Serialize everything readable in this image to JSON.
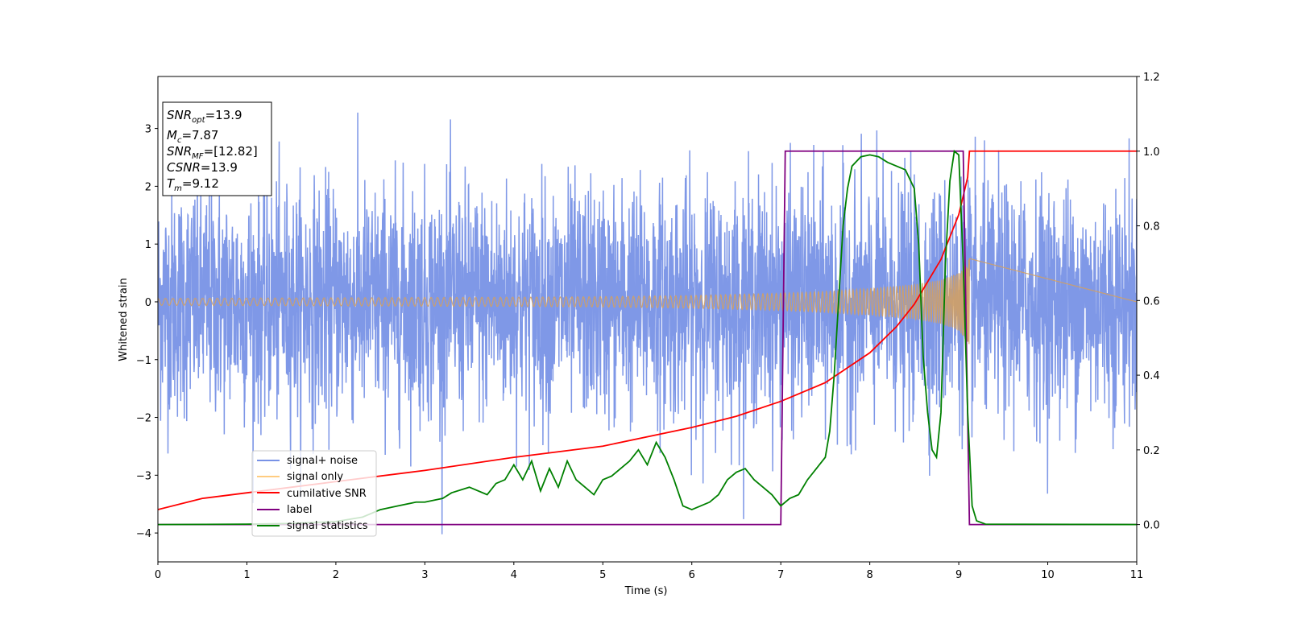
{
  "chart_data": {
    "type": "line",
    "xlabel": "Time (s)",
    "ylabel": "Whitened strain",
    "xlim": [
      0,
      11
    ],
    "ylim_left": [
      -4.5,
      3.9
    ],
    "ylim_right": [
      -0.1,
      1.2
    ],
    "x_ticks": [
      0,
      1,
      2,
      3,
      4,
      5,
      6,
      7,
      8,
      9,
      10,
      11
    ],
    "y_left_ticks": [
      -4,
      -3,
      -2,
      -1,
      0,
      1,
      2,
      3
    ],
    "y_right_ticks": [
      0.0,
      0.2,
      0.4,
      0.6,
      0.8,
      1.0,
      1.2
    ],
    "colors": {
      "noise": "#7892e6",
      "signal": "#d2a064",
      "cumulative": "#ff0000",
      "label": "#800080",
      "statistics": "#008000"
    },
    "stats_box": {
      "snr_opt": "13.9",
      "mc": "7.87",
      "snr_mf": "[12.82]",
      "csnr": "13.9",
      "tm": "9.12"
    },
    "legend": {
      "location": "lower-left",
      "entries": [
        {
          "label": "signal+ noise",
          "color": "#7892e6"
        },
        {
          "label": "signal only",
          "color": "#ffcc80"
        },
        {
          "label": "cumilative SNR",
          "color": "#ff0000"
        },
        {
          "label": "label",
          "color": "#800080"
        },
        {
          "label": "signal statistics",
          "color": "#008000"
        }
      ]
    },
    "series": [
      {
        "name": "signal+ noise",
        "axis": "left",
        "description_only": true,
        "amplitude_range": [
          -4.2,
          3.55
        ],
        "x_range": [
          0,
          11
        ]
      },
      {
        "name": "signal only",
        "axis": "left",
        "envelope": {
          "x": [
            0,
            2,
            4,
            5,
            6,
            7,
            7.5,
            8,
            8.5,
            8.8,
            9.0,
            9.1,
            9.12
          ],
          "amplitude": [
            0.06,
            0.07,
            0.08,
            0.09,
            0.11,
            0.15,
            0.18,
            0.23,
            0.3,
            0.38,
            0.5,
            0.7,
            0.75
          ]
        },
        "end_time": 9.12
      },
      {
        "name": "cumilative SNR",
        "axis": "right",
        "x": [
          0,
          0.5,
          1,
          2,
          3,
          4,
          5,
          6,
          6.5,
          7,
          7.5,
          8,
          8.3,
          8.5,
          8.8,
          9.0,
          9.1,
          9.12,
          11
        ],
        "y": [
          0.04,
          0.07,
          0.085,
          0.115,
          0.145,
          0.18,
          0.21,
          0.26,
          0.29,
          0.33,
          0.38,
          0.46,
          0.53,
          0.59,
          0.71,
          0.83,
          0.93,
          1.0,
          1.0
        ]
      },
      {
        "name": "label",
        "axis": "right",
        "x": [
          0,
          7.0,
          7.05,
          9.05,
          9.12,
          11
        ],
        "y": [
          0.0,
          0.0,
          1.0,
          1.0,
          0.0,
          0.0
        ]
      },
      {
        "name": "signal statistics",
        "axis": "right",
        "x": [
          0,
          1,
          1.5,
          2,
          2.3,
          2.5,
          2.7,
          2.9,
          3.0,
          3.2,
          3.3,
          3.5,
          3.7,
          3.8,
          3.9,
          4.0,
          4.1,
          4.2,
          4.3,
          4.4,
          4.5,
          4.6,
          4.7,
          4.8,
          4.9,
          5.0,
          5.1,
          5.2,
          5.3,
          5.4,
          5.5,
          5.6,
          5.7,
          5.8,
          5.9,
          6.0,
          6.1,
          6.2,
          6.3,
          6.4,
          6.5,
          6.6,
          6.7,
          6.8,
          6.9,
          7.0,
          7.1,
          7.2,
          7.3,
          7.4,
          7.5,
          7.55,
          7.6,
          7.65,
          7.7,
          7.75,
          7.8,
          7.9,
          8.0,
          8.1,
          8.2,
          8.3,
          8.4,
          8.5,
          8.55,
          8.6,
          8.65,
          8.7,
          8.75,
          8.8,
          8.85,
          8.9,
          8.95,
          9.0,
          9.05,
          9.1,
          9.15,
          9.2,
          9.3,
          11
        ],
        "y": [
          0.0,
          0.001,
          0.003,
          0.008,
          0.02,
          0.04,
          0.05,
          0.06,
          0.06,
          0.07,
          0.085,
          0.1,
          0.08,
          0.11,
          0.12,
          0.16,
          0.12,
          0.17,
          0.09,
          0.15,
          0.1,
          0.17,
          0.12,
          0.1,
          0.08,
          0.12,
          0.13,
          0.15,
          0.17,
          0.2,
          0.16,
          0.22,
          0.18,
          0.12,
          0.05,
          0.04,
          0.05,
          0.06,
          0.08,
          0.12,
          0.14,
          0.15,
          0.12,
          0.1,
          0.08,
          0.05,
          0.07,
          0.08,
          0.12,
          0.15,
          0.18,
          0.25,
          0.4,
          0.6,
          0.8,
          0.9,
          0.96,
          0.985,
          0.99,
          0.985,
          0.97,
          0.96,
          0.95,
          0.9,
          0.75,
          0.45,
          0.3,
          0.2,
          0.18,
          0.3,
          0.7,
          0.92,
          1.0,
          0.99,
          0.7,
          0.3,
          0.05,
          0.01,
          0.001,
          0.0
        ]
      }
    ]
  }
}
